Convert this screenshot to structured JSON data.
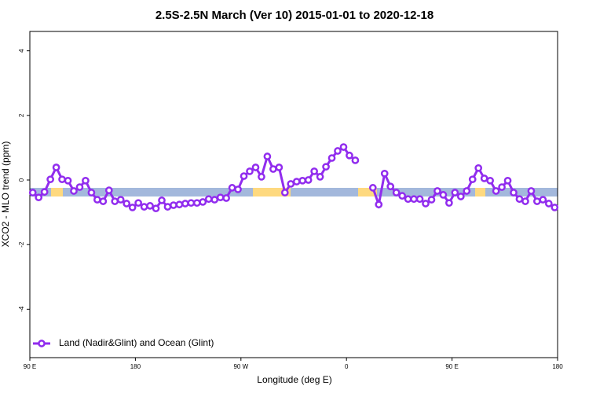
{
  "chart_data": {
    "type": "line",
    "title": "2.5S-2.5N March (Ver 10)   2015-01-01 to 2020-12-18",
    "x_label": "Longitude (deg E)",
    "y_label": "XCO2 - MLO trend (ppm)",
    "x": [
      92.5,
      97.5,
      102.5,
      107.5,
      112.5,
      117.5,
      122.5,
      127.5,
      132.5,
      137.5,
      142.5,
      147.5,
      152.5,
      157.5,
      162.5,
      167.5,
      172.5,
      177.5,
      182.5,
      187.5,
      192.5,
      197.5,
      202.5,
      207.5,
      212.5,
      217.5,
      222.5,
      227.5,
      232.5,
      237.5,
      242.5,
      247.5,
      252.5,
      257.5,
      262.5,
      267.5,
      272.5,
      277.5,
      282.5,
      287.5,
      292.5,
      297.5,
      302.5,
      307.5,
      312.5,
      317.5,
      322.5,
      327.5,
      332.5,
      337.5,
      342.5,
      347.5,
      352.5,
      357.5,
      362.5,
      367.5,
      372.5,
      377.5,
      382.5,
      387.5,
      392.5,
      397.5,
      402.5,
      407.5,
      412.5,
      417.5,
      422.5,
      427.5,
      432.5,
      437.5,
      442.5,
      447.5,
      452.5,
      457.5,
      462.5,
      467.5,
      472.5,
      477.5,
      482.5,
      487.5,
      492.5,
      497.5,
      502.5,
      507.5,
      512.5,
      517.5,
      522.5,
      527.5,
      532.5,
      537.5
    ],
    "series": [
      {
        "name": "Land (Nadir&Glint) and Ocean (Glint)",
        "color": "#912cee",
        "values": [
          -0.39,
          -0.54,
          -0.37,
          0.02,
          0.39,
          0.02,
          -0.02,
          -0.34,
          -0.22,
          -0.02,
          -0.39,
          -0.61,
          -0.66,
          -0.32,
          -0.66,
          -0.61,
          -0.73,
          -0.85,
          -0.71,
          -0.83,
          -0.8,
          -0.88,
          -0.63,
          -0.83,
          -0.78,
          -0.76,
          -0.73,
          -0.71,
          -0.71,
          -0.68,
          -0.59,
          -0.61,
          -0.54,
          -0.56,
          -0.24,
          -0.29,
          0.12,
          0.27,
          0.39,
          0.1,
          0.73,
          0.34,
          0.39,
          -0.39,
          -0.12,
          -0.05,
          -0.02,
          0.0,
          0.27,
          0.1,
          0.41,
          0.68,
          0.9,
          1.02,
          0.76,
          0.61,
          null,
          null,
          -0.24,
          -0.76,
          0.2,
          -0.2,
          -0.39,
          -0.49,
          -0.59,
          -0.59,
          -0.59,
          -0.73,
          -0.61,
          -0.34,
          -0.46,
          -0.71,
          -0.39,
          -0.51,
          -0.34,
          0.02,
          0.37,
          0.05,
          -0.02,
          -0.34,
          -0.22,
          -0.02,
          -0.39,
          -0.59,
          -0.66,
          -0.34,
          -0.66,
          -0.61,
          -0.73,
          -0.85
        ]
      }
    ],
    "xlim": [
      90,
      540
    ],
    "xticks": [
      {
        "value": 90,
        "label": "90 E"
      },
      180,
      {
        "value": 270,
        "label": "90 W"
      },
      {
        "value": 360,
        "label": "0"
      },
      {
        "value": 450,
        "label": "90 E"
      },
      {
        "value": 540,
        "label": "180"
      }
    ],
    "ylim": [
      -5.5,
      4.6
    ],
    "yticks": [
      -4,
      -2,
      0,
      2,
      4
    ],
    "legend": "bottom-left"
  }
}
